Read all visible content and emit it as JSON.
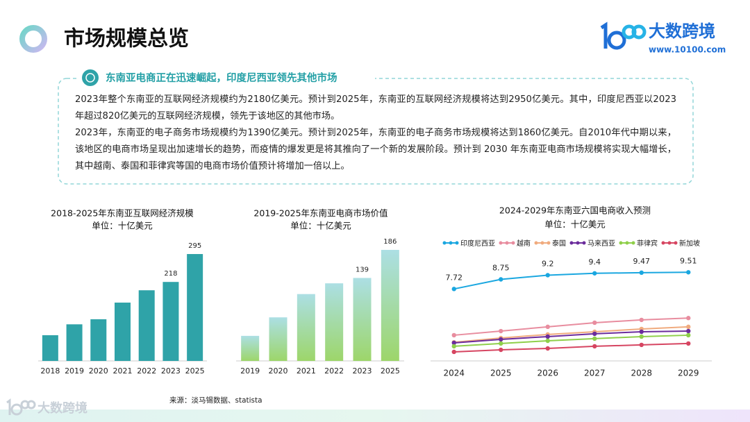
{
  "header": {
    "title": "市场规模总览",
    "brand": "大数跨境",
    "url": "www.10100.com"
  },
  "summary": {
    "heading": "东南亚电商正在迅速崛起，印度尼西亚领先其他市场",
    "paragraphs": [
      "2023年整个东南亚的互联网经济规模约为2180亿美元。预计到2025年，东南亚的互联网经济规模将达到2950亿美元。其中，印度尼西亚以2023年超过820亿美元的互联网经济规模，领先于该地区的其他市场。",
      "2023年，东南亚的电子商务市场规模约为1390亿美元。预计到2025年，东南亚的电子商务市场规模将达到1860亿美元。自2010年代中期以来，该地区的电商市场呈现出加速增长的趋势，而疫情的爆发更是将其推向了一个新的发展阶段。预计到 2030 年东南亚电商市场规模将实现大幅增长，其中越南、泰国和菲律宾等国的电商市场价值预计将增加一倍以上。"
    ]
  },
  "chart_data": [
    {
      "type": "bar",
      "title": "2018-2025年东南亚互联网经济规模",
      "subtitle": "单位：十亿美元",
      "categories": [
        "2018",
        "2019",
        "2020",
        "2021",
        "2022",
        "2023",
        "2025"
      ],
      "values": [
        71,
        101,
        115,
        161,
        195,
        218,
        295
      ],
      "value_labels": [
        null,
        null,
        null,
        null,
        null,
        "218",
        "295"
      ],
      "color": "#2fa3a8",
      "ylim": [
        0,
        300
      ]
    },
    {
      "type": "bar",
      "title": "2019-2025年东南亚电商市场价值",
      "subtitle": "单位：十亿美元",
      "categories": [
        "2019",
        "2020",
        "2021",
        "2022",
        "2023",
        "2025"
      ],
      "values": [
        42,
        73,
        112,
        130,
        139,
        186
      ],
      "value_labels": [
        null,
        null,
        null,
        null,
        "139",
        "186"
      ],
      "gradient": [
        "#acdfe4",
        "#9dd66a"
      ],
      "ylim": [
        0,
        200
      ]
    },
    {
      "type": "line",
      "title": "2024-2029年东南亚六国电商收入预测",
      "subtitle": "单位：十亿美元",
      "x": [
        2024,
        2025,
        2026,
        2027,
        2028,
        2029
      ],
      "xlim": [
        2023.5,
        2029.5
      ],
      "xticks": [
        2024,
        2025,
        2026,
        2027,
        2028,
        2029
      ],
      "ylim": [
        0,
        10.5
      ],
      "legend": "top",
      "series": [
        {
          "name": "印度尼西亚",
          "color": "#1aa7e0",
          "values": [
            7.72,
            8.75,
            9.2,
            9.4,
            9.47,
            9.51
          ],
          "show_labels": true
        },
        {
          "name": "越南",
          "color": "#e88d9f",
          "values": [
            2.76,
            3.2,
            3.66,
            4.1,
            4.4,
            4.6
          ]
        },
        {
          "name": "泰国",
          "color": "#f0ab7e",
          "values": [
            2.0,
            2.46,
            2.84,
            3.13,
            3.43,
            3.66
          ]
        },
        {
          "name": "马来西亚",
          "color": "#6b2c9c",
          "values": [
            1.94,
            2.31,
            2.61,
            2.91,
            3.13,
            3.2
          ]
        },
        {
          "name": "菲律宾",
          "color": "#8fcf4a",
          "values": [
            1.57,
            1.87,
            2.16,
            2.39,
            2.61,
            2.76
          ]
        },
        {
          "name": "新加坡",
          "color": "#d64561",
          "values": [
            0.97,
            1.19,
            1.34,
            1.57,
            1.72,
            1.87
          ]
        }
      ]
    }
  ],
  "source": "来源：淡马锡数据、statista",
  "footer": {
    "brand": "大数跨境"
  }
}
